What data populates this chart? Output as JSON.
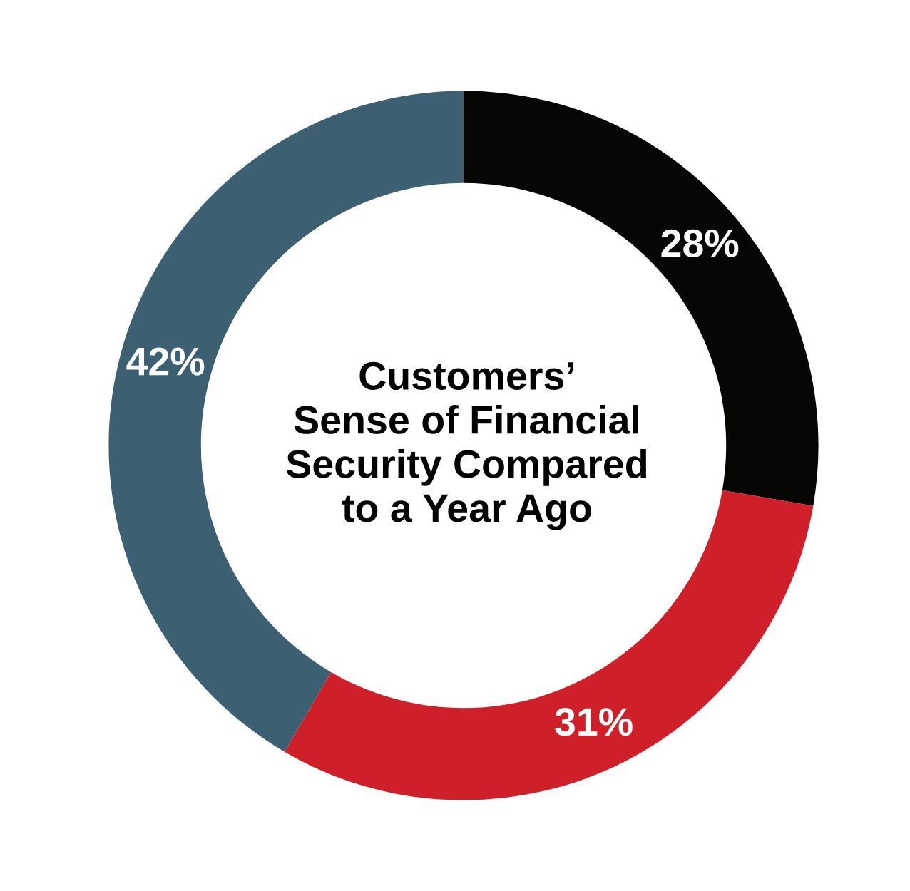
{
  "chart_data": {
    "type": "donut",
    "title": "Customers’\nSense of Financial\nSecurity Compared\nto a Year Ago",
    "categories": [
      null,
      null,
      null
    ],
    "values": [
      28,
      31,
      42
    ],
    "colors": [
      "#060604",
      "#cf202a",
      "#3c5f71"
    ],
    "value_labels": [
      "28%",
      "31%",
      "42%"
    ],
    "legend": false
  }
}
